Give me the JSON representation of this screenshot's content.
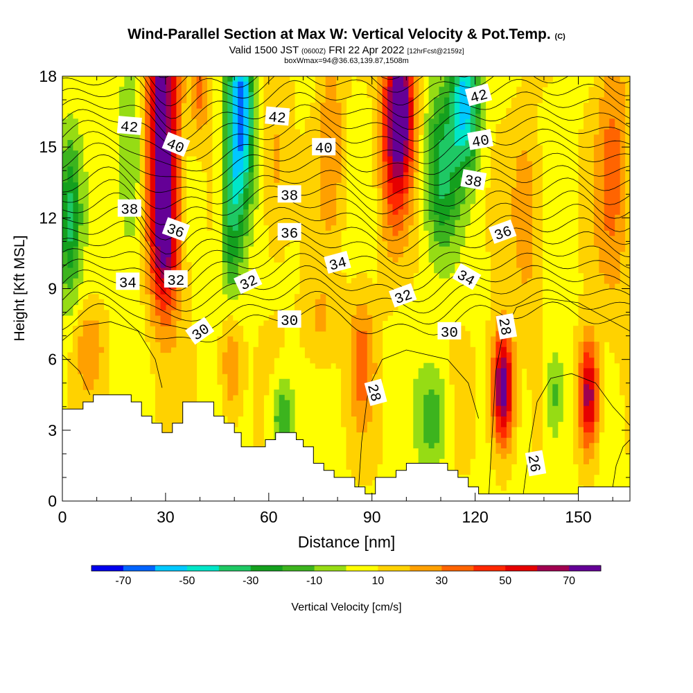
{
  "title": {
    "main": "Wind-Parallel Section at Max W: Vertical Velocity & Pot.Temp.",
    "main_unit": "(C)",
    "valid_prefix": "Valid 1500 JST",
    "valid_small": "(0600Z)",
    "valid_date": "FRI 22 Apr 2022",
    "valid_fcst": "[12hrFcst@2159z]",
    "box": "boxWmax=94@36.63,139.87,1508m"
  },
  "chart_data": {
    "type": "heatmap",
    "xlabel": "Distance [nm]",
    "ylabel": "Height [Kft MSL]",
    "xlim": [
      0,
      165
    ],
    "ylim": [
      0,
      18
    ],
    "x_ticks": [
      0,
      30,
      60,
      90,
      120,
      150
    ],
    "y_ticks": [
      0,
      3,
      6,
      9,
      12,
      15,
      18
    ],
    "colorbar": {
      "label": "Vertical Velocity [cm/s]",
      "tick_labels": [
        -70,
        -50,
        -30,
        -10,
        10,
        30,
        50,
        70
      ],
      "bounds": [
        -80,
        -70,
        -60,
        -50,
        -40,
        -30,
        -20,
        -10,
        0,
        10,
        20,
        30,
        40,
        50,
        60,
        70,
        80
      ],
      "colors": [
        "#0000ee",
        "#0064ff",
        "#00c8ff",
        "#00e6c8",
        "#1ec864",
        "#14a01e",
        "#3cb41e",
        "#96dc14",
        "#ffff00",
        "#ffd200",
        "#ffa000",
        "#ff6400",
        "#ff2800",
        "#e60000",
        "#a00050",
        "#640096"
      ]
    },
    "terrain": [
      [
        0,
        3.9
      ],
      [
        6,
        3.9
      ],
      [
        6,
        4.2
      ],
      [
        9,
        4.2
      ],
      [
        9,
        4.5
      ],
      [
        20,
        4.5
      ],
      [
        20,
        4.2
      ],
      [
        23,
        4.2
      ],
      [
        23,
        3.6
      ],
      [
        26,
        3.6
      ],
      [
        26,
        3.3
      ],
      [
        29,
        3.3
      ],
      [
        29,
        2.9
      ],
      [
        32,
        2.9
      ],
      [
        32,
        3.3
      ],
      [
        35,
        3.3
      ],
      [
        35,
        4.2
      ],
      [
        41,
        4.2
      ],
      [
        41,
        4.2
      ],
      [
        44,
        4.2
      ],
      [
        44,
        3.6
      ],
      [
        47,
        3.6
      ],
      [
        47,
        3.3
      ],
      [
        50,
        3.3
      ],
      [
        50,
        2.9
      ],
      [
        52,
        2.9
      ],
      [
        52,
        2.3
      ],
      [
        56,
        2.3
      ],
      [
        56,
        2.3
      ],
      [
        59,
        2.3
      ],
      [
        59,
        2.6
      ],
      [
        62,
        2.6
      ],
      [
        62,
        2.9
      ],
      [
        68,
        2.9
      ],
      [
        68,
        2.6
      ],
      [
        70,
        2.6
      ],
      [
        70,
        2.3
      ],
      [
        73,
        2.3
      ],
      [
        73,
        1.6
      ],
      [
        76,
        1.6
      ],
      [
        76,
        1.3
      ],
      [
        79,
        1.3
      ],
      [
        79,
        1.0
      ],
      [
        85,
        1.0
      ],
      [
        85,
        0.6
      ],
      [
        88,
        0.6
      ],
      [
        88,
        0.3
      ],
      [
        91,
        0.3
      ],
      [
        91,
        1.0
      ],
      [
        97,
        1.0
      ],
      [
        97,
        1.3
      ],
      [
        100,
        1.3
      ],
      [
        100,
        1.6
      ],
      [
        112,
        1.6
      ],
      [
        112,
        1.3
      ],
      [
        115,
        1.3
      ],
      [
        115,
        1.0
      ],
      [
        118,
        1.0
      ],
      [
        118,
        0.6
      ],
      [
        121,
        0.6
      ],
      [
        121,
        0.3
      ],
      [
        141,
        0.3
      ],
      [
        141,
        0.3
      ],
      [
        150,
        0.3
      ],
      [
        150,
        0.6
      ],
      [
        165,
        0.6
      ]
    ],
    "w_features": [
      {
        "x": 29,
        "y": 16.5,
        "sx": 3.2,
        "sy": 4.5,
        "w": 70
      },
      {
        "x": 30,
        "y": 11.0,
        "sx": 3.0,
        "sy": 2.2,
        "w": 45
      },
      {
        "x": 52,
        "y": 16.5,
        "sx": 2.6,
        "sy": 3.0,
        "w": -70
      },
      {
        "x": 49,
        "y": 12.0,
        "sx": 2.2,
        "sy": 3.2,
        "w": -35
      },
      {
        "x": 98,
        "y": 16.8,
        "sx": 3.0,
        "sy": 2.2,
        "w": 75
      },
      {
        "x": 96,
        "y": 13.5,
        "sx": 3.0,
        "sy": 2.5,
        "w": 25
      },
      {
        "x": 117,
        "y": 17.0,
        "sx": 3.0,
        "sy": 2.0,
        "w": -62
      },
      {
        "x": 110,
        "y": 14.0,
        "sx": 3.5,
        "sy": 2.5,
        "w": -38
      },
      {
        "x": 2,
        "y": 12.0,
        "sx": 2.2,
        "sy": 2.5,
        "w": -38
      },
      {
        "x": 128,
        "y": 4.8,
        "sx": 2.2,
        "sy": 1.7,
        "w": 75
      },
      {
        "x": 153,
        "y": 4.5,
        "sx": 2.0,
        "sy": 1.7,
        "w": 62
      },
      {
        "x": 49,
        "y": 6.0,
        "sx": 2.2,
        "sy": 1.8,
        "w": 30
      },
      {
        "x": 64,
        "y": 3.5,
        "sx": 2.5,
        "sy": 1.2,
        "w": -30
      },
      {
        "x": 75,
        "y": 7.5,
        "sx": 3.5,
        "sy": 1.5,
        "w": 15
      },
      {
        "x": 87,
        "y": 6.0,
        "sx": 2.5,
        "sy": 2.0,
        "w": 25
      },
      {
        "x": 108,
        "y": 3.5,
        "sx": 3.0,
        "sy": 1.5,
        "w": -25
      },
      {
        "x": 143,
        "y": 4.5,
        "sx": 2.0,
        "sy": 1.5,
        "w": -25
      },
      {
        "x": 8,
        "y": 6.5,
        "sx": 3.0,
        "sy": 1.2,
        "w": 18
      },
      {
        "x": 160,
        "y": 14.0,
        "sx": 3.5,
        "sy": 4.0,
        "w": 25
      },
      {
        "x": 78,
        "y": 15.5,
        "sx": 2.5,
        "sy": 3.0,
        "w": 20
      },
      {
        "x": 40,
        "y": 17.5,
        "sx": 2.0,
        "sy": 1.5,
        "w": 25
      },
      {
        "x": 20,
        "y": 14.0,
        "sx": 3.0,
        "sy": 3.0,
        "w": -22
      },
      {
        "x": 62,
        "y": 14.0,
        "sx": 3.0,
        "sy": 2.5,
        "w": 18
      },
      {
        "x": 135,
        "y": 12.0,
        "sx": 3.0,
        "sy": 3.0,
        "w": 18
      }
    ],
    "theta_levels": [
      26,
      28,
      30,
      32,
      34,
      36,
      38,
      40,
      42
    ],
    "contour_labels": [
      {
        "text": "42",
        "x": 19.5,
        "y": 15.9,
        "angle": -5
      },
      {
        "text": "40",
        "x": 33.0,
        "y": 15.1,
        "angle": -22
      },
      {
        "text": "38",
        "x": 19.5,
        "y": 12.4,
        "angle": 0
      },
      {
        "text": "36",
        "x": 33.0,
        "y": 11.5,
        "angle": -20
      },
      {
        "text": "34",
        "x": 19.0,
        "y": 9.3,
        "angle": 0
      },
      {
        "text": "32",
        "x": 33.0,
        "y": 9.4,
        "angle": 0
      },
      {
        "text": "30",
        "x": 40.0,
        "y": 7.2,
        "angle": 35
      },
      {
        "text": "42",
        "x": 62.5,
        "y": 16.3,
        "angle": -5
      },
      {
        "text": "40",
        "x": 76.0,
        "y": 15.0,
        "angle": 0
      },
      {
        "text": "38",
        "x": 66.0,
        "y": 13.0,
        "angle": 0
      },
      {
        "text": "36",
        "x": 66.0,
        "y": 11.4,
        "angle": 0
      },
      {
        "text": "32",
        "x": 54.0,
        "y": 9.3,
        "angle": 25
      },
      {
        "text": "34",
        "x": 80.0,
        "y": 10.1,
        "angle": 15
      },
      {
        "text": "30",
        "x": 66.0,
        "y": 7.7,
        "angle": 0
      },
      {
        "text": "32",
        "x": 99.0,
        "y": 8.7,
        "angle": 20
      },
      {
        "text": "28",
        "x": 91.0,
        "y": 4.6,
        "angle": -75
      },
      {
        "text": "42",
        "x": 121.0,
        "y": 17.2,
        "angle": 15
      },
      {
        "text": "40",
        "x": 121.5,
        "y": 15.3,
        "angle": 10
      },
      {
        "text": "38",
        "x": 119.5,
        "y": 13.6,
        "angle": -10
      },
      {
        "text": "36",
        "x": 128.0,
        "y": 11.4,
        "angle": 20
      },
      {
        "text": "34",
        "x": 117.5,
        "y": 9.5,
        "angle": -30
      },
      {
        "text": "30",
        "x": 112.5,
        "y": 7.2,
        "angle": 0
      },
      {
        "text": "28",
        "x": 129.0,
        "y": 7.4,
        "angle": -80
      },
      {
        "text": "26",
        "x": 137.5,
        "y": 1.6,
        "angle": -80
      }
    ]
  }
}
